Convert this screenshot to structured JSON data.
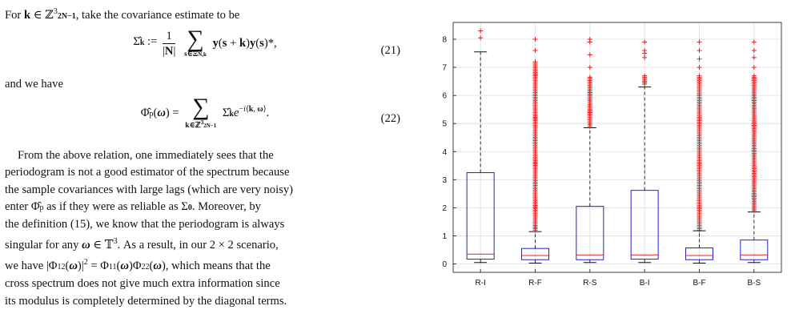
{
  "text": {
    "intro_for": "For",
    "intro_rest": ", take the covariance estimate to be",
    "eq21_num": "(21)",
    "and_we_have": "and we have",
    "eq22_num": "(22)",
    "para_p1": "From the above relation, one immediately sees that the",
    "para_p2": "periodogram is not a good estimator of the spectrum because",
    "para_p3": "the sample covariances with large lags (which are very noisy)",
    "para_p4a": "enter",
    "para_p4b": "as if they were as reliable as",
    "para_p4c": ". Moreover, by",
    "para_p5": "the definition (15), we know that the periodogram is always",
    "para_p6a": "singular for any",
    "para_p6b": ". As a result, in our 2 × 2 scenario,",
    "para_p7a": "we have",
    "para_p7b": ", which means that the",
    "para_p8": "cross spectrum does not give much extra information since",
    "para_p9": "its modulus is completely determined by the diagonal terms."
  },
  "chart_data": {
    "type": "box",
    "categories": [
      "R-I",
      "R-F",
      "R-S",
      "B-I",
      "B-F",
      "B-S"
    ],
    "ylim": [
      -0.3,
      8.6
    ],
    "yticks": [
      0,
      1,
      2,
      3,
      4,
      5,
      6,
      7,
      8
    ],
    "grid": true,
    "colors": {
      "box": "#2222cc",
      "median": "#e02020",
      "whisker": "#111111",
      "outlier": "#e02020",
      "grid": "#dddddd"
    },
    "boxes": [
      {
        "label": "R-I",
        "min": 0.05,
        "q1": 0.17,
        "median": 0.35,
        "q3": 3.25,
        "max": 7.55,
        "outliers": [
          8.05,
          8.3
        ]
      },
      {
        "label": "R-F",
        "min": 0.03,
        "q1": 0.15,
        "median": 0.3,
        "q3": 0.55,
        "max": 1.15,
        "outlier_range": [
          1.2,
          7.2
        ],
        "outliers": [
          7.6,
          8.0
        ]
      },
      {
        "label": "R-S",
        "min": 0.05,
        "q1": 0.15,
        "median": 0.32,
        "q3": 2.05,
        "max": 4.85,
        "outlier_range": [
          4.9,
          6.65
        ],
        "outliers": [
          7.0,
          7.45,
          7.9,
          8.0
        ]
      },
      {
        "label": "B-I",
        "min": 0.05,
        "q1": 0.17,
        "median": 0.32,
        "q3": 2.62,
        "max": 6.3,
        "outlier_range": [
          6.4,
          6.7
        ],
        "outliers": [
          7.35,
          7.5,
          7.6,
          7.9
        ]
      },
      {
        "label": "B-F",
        "min": 0.03,
        "q1": 0.15,
        "median": 0.3,
        "q3": 0.57,
        "max": 1.18,
        "outlier_range": [
          1.2,
          6.7
        ],
        "outliers": [
          7.0,
          7.3,
          7.6,
          7.9
        ]
      },
      {
        "label": "B-S",
        "min": 0.05,
        "q1": 0.15,
        "median": 0.32,
        "q3": 0.85,
        "max": 1.85,
        "outlier_range": [
          1.9,
          6.7
        ],
        "outliers": [
          7.0,
          7.35,
          7.6,
          7.9
        ]
      }
    ]
  }
}
